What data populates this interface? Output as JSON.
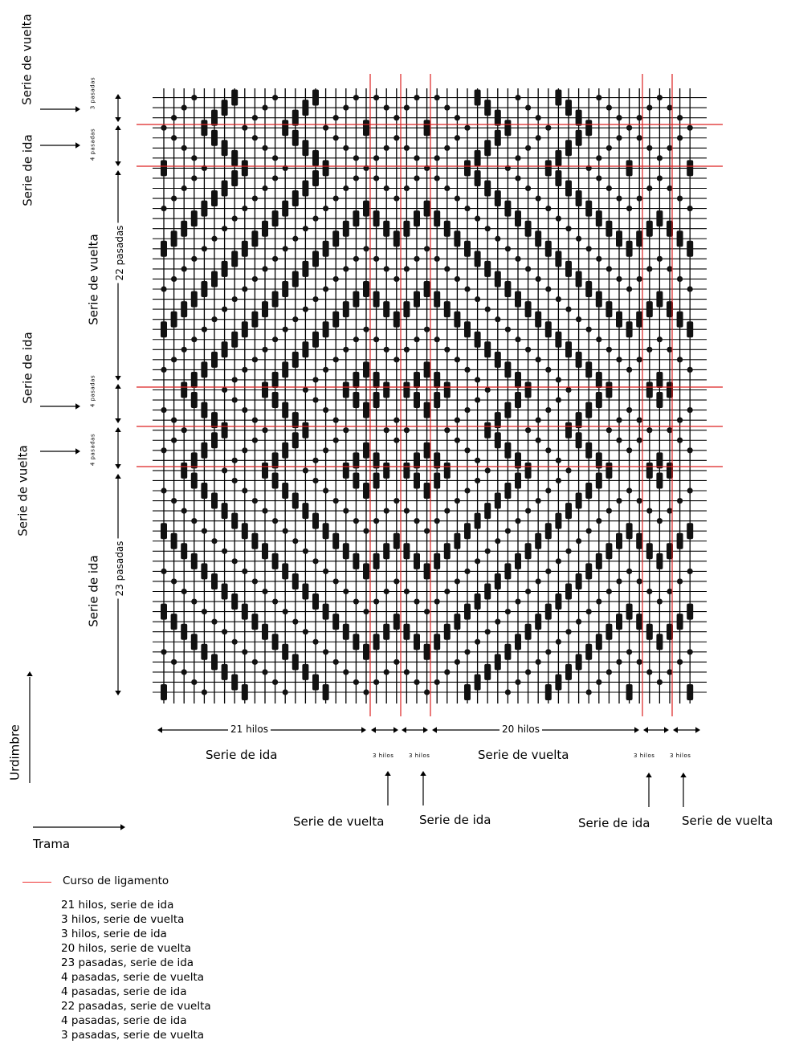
{
  "colors": {
    "grid": "#000000",
    "course_line": "#dd2222",
    "mark": "#111111"
  },
  "left_labels": {
    "top_vuelta": "Serie de vuelta",
    "top_ida": "Serie de ida",
    "mid_ida": "Serie de ida",
    "mid_vuelta": "Serie de vuelta"
  },
  "row_groups": {
    "g3": {
      "count": "3 pasadas",
      "series": ""
    },
    "g4a": {
      "count": "4 pasadas",
      "series": ""
    },
    "g22": {
      "count": "22 pasadas",
      "series": "Serie de vuelta"
    },
    "g4b": {
      "count": "4 pasadas",
      "series": ""
    },
    "g4c": {
      "count": "4 pasadas",
      "series": ""
    },
    "g23": {
      "count": "23 pasadas",
      "series": "Serie de ida"
    }
  },
  "col_groups": {
    "c21": {
      "count": "21 hilos",
      "series": "Serie de ida"
    },
    "c3a": {
      "count": "3 hilos",
      "series": "Serie de vuelta"
    },
    "c3b": {
      "count": "3 hilos",
      "series": "Serie de ida"
    },
    "c20": {
      "count": "20 hilos",
      "series": "Serie de vuelta"
    },
    "c3c": {
      "count": "3 hilos",
      "series": "Serie de ida"
    },
    "c3d": {
      "count": "3 hilos",
      "series": "Serie de vuelta"
    }
  },
  "axes": {
    "warp": "Urdimbre",
    "weft": "Trama"
  },
  "legend": {
    "line_label": "Curso de ligamento",
    "items": [
      "21 hilos, serie de ida",
      "3 hilos, serie de vuelta",
      "3 hilos, serie de ida",
      "20 hilos, serie de vuelta",
      "23 pasadas, serie de ida",
      "4 pasadas, serie de vuelta",
      "4 pasadas, serie de ida",
      "22 pasadas, serie de vuelta",
      "4 pasadas, serie de ida",
      "3 pasadas, serie de vuelta"
    ]
  },
  "weave": {
    "threads": 53,
    "picks": 60,
    "thread_sequence": [
      21,
      3,
      3,
      20,
      3,
      3
    ],
    "pick_sequence_bottom_up": [
      23,
      4,
      4,
      22,
      4,
      3
    ]
  }
}
